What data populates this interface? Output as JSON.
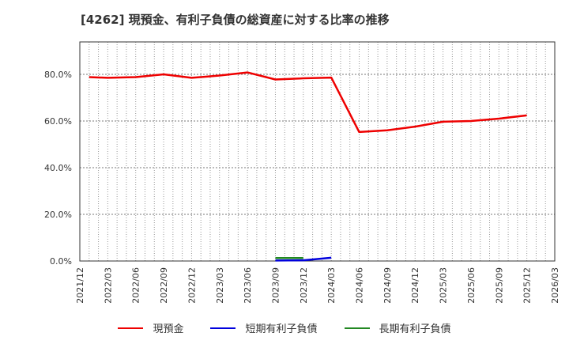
{
  "title": "[4262]  現預金、有利子負債の総資産に対する比率の推移",
  "legend": [
    {
      "label": "現預金",
      "color": "#ee0000"
    },
    {
      "label": "短期有利子負債",
      "color": "#0000dd"
    },
    {
      "label": "長期有利子負債",
      "color": "#228822"
    }
  ],
  "chart_data": {
    "type": "line",
    "title": "[4262]  現預金、有利子負債の総資産に対する比率の推移",
    "xlabel": "",
    "ylabel": "",
    "ylim": [
      0,
      93
    ],
    "yticks": [
      "0.0%",
      "20.0%",
      "40.0%",
      "60.0%",
      "80.0%"
    ],
    "xticks": [
      "2021/12",
      "2022/03",
      "2022/06",
      "2022/09",
      "2022/12",
      "2023/03",
      "2023/06",
      "2023/09",
      "2023/12",
      "2024/03",
      "2024/06",
      "2024/09",
      "2024/12",
      "2025/03",
      "2025/06",
      "2025/09",
      "2025/12",
      "2026/03"
    ],
    "grid": true,
    "legend_position": "bottom",
    "series": [
      {
        "name": "現預金",
        "color": "#ee0000",
        "x": [
          "2022/01",
          "2022/03",
          "2022/06",
          "2022/09",
          "2022/12",
          "2023/03",
          "2023/06",
          "2023/09",
          "2023/12",
          "2024/03",
          "2024/06",
          "2024/09",
          "2024/12",
          "2025/03",
          "2025/06",
          "2025/09",
          "2025/12"
        ],
        "values": [
          78.8,
          78.5,
          78.8,
          80.0,
          78.5,
          79.5,
          80.8,
          77.8,
          78.3,
          78.6,
          55.3,
          56.0,
          57.6,
          59.7,
          60.0,
          61.0,
          62.4
        ]
      },
      {
        "name": "短期有利子負債",
        "color": "#0000dd",
        "x": [
          "2023/09",
          "2023/12",
          "2024/03"
        ],
        "values": [
          0.2,
          0.3,
          1.4
        ]
      },
      {
        "name": "長期有利子負債",
        "color": "#228822",
        "x": [
          "2023/09",
          "2023/12"
        ],
        "values": [
          1.3,
          1.3
        ]
      }
    ]
  }
}
